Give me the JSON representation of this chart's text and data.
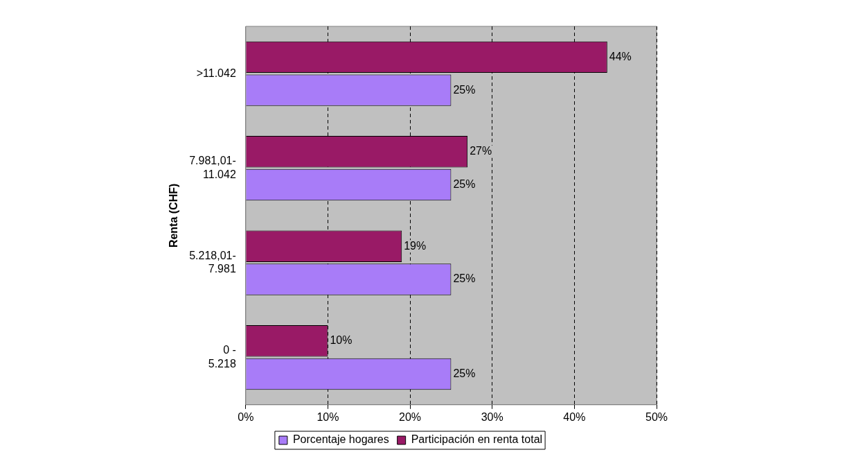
{
  "chart_data": {
    "type": "bar",
    "orientation": "horizontal",
    "ylabel": "Renta (CHF)",
    "categories": [
      ">11.042",
      "7.981,01-11.042",
      "5.218,01-7.981",
      "0 -5.218"
    ],
    "series": [
      {
        "name": "Porcentaje hogares",
        "color": "#a87cf8",
        "values": [
          25,
          25,
          25,
          25
        ],
        "value_labels": [
          "25%",
          "25%",
          "25%",
          "25%"
        ]
      },
      {
        "name": "Participación en renta total",
        "color": "#991a66",
        "values": [
          44,
          27,
          19,
          10
        ],
        "value_labels": [
          "44%",
          "27%",
          "19%",
          "10%"
        ]
      }
    ],
    "xlim": [
      0,
      50
    ],
    "xticks": [
      {
        "value": 0,
        "label": "0%"
      },
      {
        "value": 10,
        "label": "10%"
      },
      {
        "value": 20,
        "label": "20%"
      },
      {
        "value": 30,
        "label": "30%"
      },
      {
        "value": 40,
        "label": "40%"
      },
      {
        "value": 50,
        "label": "50%"
      }
    ],
    "grid": "x",
    "legend": "bottom"
  }
}
